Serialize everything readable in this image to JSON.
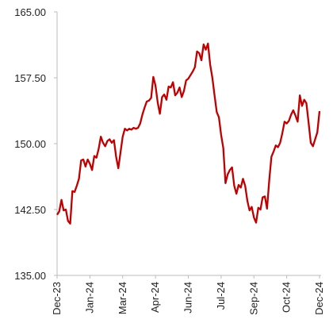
{
  "chart_data": {
    "type": "line",
    "categories": [
      "Dec-23",
      null,
      null,
      null,
      null,
      null,
      null,
      null,
      null,
      null,
      null,
      null,
      null,
      null,
      null,
      "Jan-24",
      null,
      null,
      null,
      null,
      null,
      null,
      null,
      null,
      null,
      null,
      null,
      null,
      null,
      null,
      "Mar-24",
      null,
      null,
      null,
      null,
      null,
      null,
      null,
      null,
      null,
      null,
      null,
      null,
      null,
      null,
      "Apr-24",
      null,
      null,
      null,
      null,
      null,
      null,
      null,
      null,
      null,
      null,
      null,
      null,
      null,
      null,
      "Jun-24",
      null,
      null,
      null,
      null,
      null,
      null,
      null,
      null,
      null,
      null,
      null,
      null,
      null,
      null,
      "Jul-24",
      null,
      null,
      null,
      null,
      null,
      null,
      null,
      null,
      null,
      null,
      null,
      null,
      null,
      null,
      "Sep-24",
      null,
      null,
      null,
      null,
      null,
      null,
      null,
      null,
      null,
      null,
      null,
      null,
      null,
      null,
      "Oct-24",
      null,
      null,
      null,
      null,
      null,
      null,
      null,
      null,
      null,
      null,
      null,
      null,
      null,
      null,
      "Dec-24"
    ],
    "series": [
      {
        "color": "#c00000",
        "values": [
          141.9,
          142.3,
          143.6,
          142.4,
          142.5,
          141.2,
          140.9,
          144.6,
          144.5,
          145.2,
          146,
          148.1,
          148.2,
          147.4,
          148.2,
          147.7,
          147,
          148.6,
          148.4,
          149.4,
          150.8,
          150.1,
          149.7,
          150.3,
          150.5,
          150.1,
          150.4,
          148.5,
          147.2,
          149,
          150.8,
          151.7,
          151.5,
          151.7,
          151.6,
          151.8,
          151.7,
          151.8,
          152.3,
          153.3,
          154.1,
          154.8,
          154.9,
          155.2,
          157.6,
          156.6,
          154.7,
          153.4,
          155.3,
          155.6,
          155,
          156.5,
          156.4,
          157,
          155.5,
          155.8,
          156.4,
          155.3,
          156,
          157.2,
          157.4,
          157.8,
          158.2,
          158.7,
          160.5,
          160.3,
          159.5,
          161.3,
          160.7,
          161.4,
          159,
          157.5,
          155.5,
          153.6,
          153,
          151,
          149.5,
          145.5,
          146.5,
          147,
          147.3,
          145.2,
          144.3,
          145.3,
          145,
          146,
          145.2,
          143.5,
          142.4,
          142.8,
          141.6,
          141,
          142.7,
          142.5,
          143.9,
          144,
          142.6,
          145.8,
          148.5,
          149.1,
          149.8,
          149.6,
          150.1,
          151.2,
          152.5,
          152.3,
          152.6,
          153.3,
          153.8,
          153.2,
          152.5,
          155.5,
          154.3,
          155,
          154.6,
          152.4,
          150.1,
          149.7,
          150.5,
          151.3,
          153.7
        ]
      }
    ],
    "ylim": [
      135,
      165
    ],
    "yticks": [
      {
        "value": 135,
        "label": "135.00"
      },
      {
        "value": 142.5,
        "label": "142.50"
      },
      {
        "value": 150,
        "label": "150.00"
      },
      {
        "value": 157.5,
        "label": "157.50"
      },
      {
        "value": 165,
        "label": "165.00"
      }
    ],
    "grid": false
  }
}
